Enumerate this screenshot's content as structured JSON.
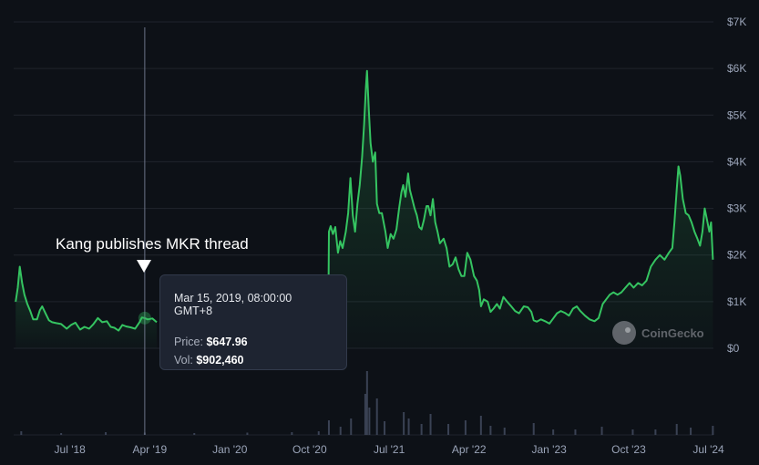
{
  "chart_data": {
    "type": "area",
    "series": [
      {
        "values": {
          "price": [
            [
              "2017-12-27",
              1000
            ],
            [
              "2018-01-03",
              1300
            ],
            [
              "2018-01-10",
              1750
            ],
            [
              "2018-01-18",
              1400
            ],
            [
              "2018-01-26",
              1150
            ],
            [
              "2018-02-05",
              950
            ],
            [
              "2018-02-15",
              800
            ],
            [
              "2018-02-25",
              620
            ],
            [
              "2018-03-10",
              620
            ],
            [
              "2018-03-20",
              820
            ],
            [
              "2018-03-28",
              900
            ],
            [
              "2018-04-08",
              750
            ],
            [
              "2018-04-20",
              600
            ],
            [
              "2018-05-01",
              560
            ],
            [
              "2018-05-15",
              540
            ],
            [
              "2018-06-01",
              520
            ],
            [
              "2018-06-20",
              420
            ],
            [
              "2018-07-05",
              500
            ],
            [
              "2018-07-20",
              550
            ],
            [
              "2018-08-05",
              400
            ],
            [
              "2018-08-20",
              460
            ],
            [
              "2018-09-05",
              420
            ],
            [
              "2018-09-20",
              520
            ],
            [
              "2018-10-05",
              650
            ],
            [
              "2018-10-20",
              560
            ],
            [
              "2018-11-05",
              580
            ],
            [
              "2018-11-18",
              460
            ],
            [
              "2018-12-01",
              440
            ],
            [
              "2018-12-15",
              380
            ],
            [
              "2018-12-28",
              500
            ],
            [
              "2019-01-10",
              470
            ],
            [
              "2019-01-25",
              450
            ],
            [
              "2019-02-10",
              420
            ],
            [
              "2019-02-25",
              560
            ],
            [
              "2019-03-05",
              660
            ],
            [
              "2019-03-15",
              648
            ],
            [
              "2019-03-25",
              620
            ],
            [
              "2019-04-10",
              640
            ],
            [
              "2019-04-25",
              560
            ]
          ],
          "price_after_gap": [
            [
              "2020-12-01",
              480
            ],
            [
              "2020-12-04",
              560
            ],
            [
              "2020-12-06",
              2500
            ],
            [
              "2020-12-12",
              2620
            ],
            [
              "2020-12-20",
              2450
            ],
            [
              "2020-12-28",
              2600
            ],
            [
              "2021-01-06",
              2050
            ],
            [
              "2021-01-14",
              2300
            ],
            [
              "2021-01-22",
              2150
            ],
            [
              "2021-02-02",
              2500
            ],
            [
              "2021-02-10",
              2900
            ],
            [
              "2021-02-18",
              3650
            ],
            [
              "2021-02-26",
              2850
            ],
            [
              "2021-03-06",
              2500
            ],
            [
              "2021-03-14",
              3100
            ],
            [
              "2021-03-22",
              3500
            ],
            [
              "2021-03-30",
              4100
            ],
            [
              "2021-04-06",
              4800
            ],
            [
              "2021-04-12",
              5600
            ],
            [
              "2021-04-16",
              5950
            ],
            [
              "2021-04-22",
              5100
            ],
            [
              "2021-04-28",
              4400
            ],
            [
              "2021-05-06",
              4000
            ],
            [
              "2021-05-14",
              4200
            ],
            [
              "2021-05-20",
              3100
            ],
            [
              "2021-05-28",
              2900
            ],
            [
              "2021-06-06",
              2900
            ],
            [
              "2021-06-18",
              2500
            ],
            [
              "2021-06-26",
              2150
            ],
            [
              "2021-07-06",
              2450
            ],
            [
              "2021-07-16",
              2350
            ],
            [
              "2021-07-26",
              2550
            ],
            [
              "2021-08-04",
              3000
            ],
            [
              "2021-08-12",
              3350
            ],
            [
              "2021-08-18",
              3500
            ],
            [
              "2021-08-26",
              3250
            ],
            [
              "2021-09-04",
              3750
            ],
            [
              "2021-09-10",
              3400
            ],
            [
              "2021-09-18",
              3200
            ],
            [
              "2021-09-26",
              3000
            ],
            [
              "2021-10-04",
              2850
            ],
            [
              "2021-10-12",
              2600
            ],
            [
              "2021-10-20",
              2550
            ],
            [
              "2021-10-28",
              2750
            ],
            [
              "2021-11-06",
              3050
            ],
            [
              "2021-11-12",
              3050
            ],
            [
              "2021-11-20",
              2850
            ],
            [
              "2021-11-28",
              3200
            ],
            [
              "2021-12-06",
              2700
            ],
            [
              "2021-12-14",
              2500
            ],
            [
              "2021-12-22",
              2250
            ],
            [
              "2022-01-04",
              2350
            ],
            [
              "2022-01-14",
              2150
            ],
            [
              "2022-01-24",
              1750
            ],
            [
              "2022-02-04",
              1800
            ],
            [
              "2022-02-14",
              1950
            ],
            [
              "2022-02-24",
              1700
            ],
            [
              "2022-03-06",
              1550
            ],
            [
              "2022-03-16",
              1550
            ],
            [
              "2022-03-26",
              2050
            ],
            [
              "2022-04-06",
              1900
            ],
            [
              "2022-04-18",
              1550
            ],
            [
              "2022-04-28",
              1450
            ],
            [
              "2022-05-06",
              1250
            ],
            [
              "2022-05-12",
              900
            ],
            [
              "2022-05-22",
              1050
            ],
            [
              "2022-06-04",
              1000
            ],
            [
              "2022-06-14",
              780
            ],
            [
              "2022-06-24",
              850
            ],
            [
              "2022-07-06",
              950
            ],
            [
              "2022-07-16",
              850
            ],
            [
              "2022-07-28",
              1100
            ],
            [
              "2022-08-10",
              1000
            ],
            [
              "2022-08-24",
              900
            ],
            [
              "2022-09-06",
              800
            ],
            [
              "2022-09-20",
              750
            ],
            [
              "2022-10-06",
              900
            ],
            [
              "2022-10-20",
              880
            ],
            [
              "2022-11-01",
              780
            ],
            [
              "2022-11-09",
              600
            ],
            [
              "2022-11-20",
              570
            ],
            [
              "2022-12-04",
              620
            ],
            [
              "2022-12-18",
              580
            ],
            [
              "2023-01-02",
              530
            ],
            [
              "2023-01-16",
              650
            ],
            [
              "2023-01-28",
              750
            ],
            [
              "2023-02-10",
              800
            ],
            [
              "2023-02-24",
              760
            ],
            [
              "2023-03-10",
              700
            ],
            [
              "2023-03-24",
              850
            ],
            [
              "2023-04-06",
              900
            ],
            [
              "2023-04-18",
              800
            ],
            [
              "2023-05-04",
              700
            ],
            [
              "2023-05-20",
              620
            ],
            [
              "2023-06-06",
              580
            ],
            [
              "2023-06-20",
              650
            ],
            [
              "2023-07-04",
              950
            ],
            [
              "2023-07-16",
              1050
            ],
            [
              "2023-07-28",
              1150
            ],
            [
              "2023-08-10",
              1200
            ],
            [
              "2023-08-24",
              1150
            ],
            [
              "2023-09-06",
              1200
            ],
            [
              "2023-09-20",
              1300
            ],
            [
              "2023-10-04",
              1400
            ],
            [
              "2023-10-18",
              1300
            ],
            [
              "2023-11-02",
              1400
            ],
            [
              "2023-11-16",
              1350
            ],
            [
              "2023-12-01",
              1450
            ],
            [
              "2023-12-16",
              1750
            ],
            [
              "2024-01-01",
              1900
            ],
            [
              "2024-01-16",
              2000
            ],
            [
              "2024-02-01",
              1900
            ],
            [
              "2024-02-16",
              2050
            ],
            [
              "2024-02-28",
              2150
            ],
            [
              "2024-03-06",
              2700
            ],
            [
              "2024-03-14",
              3400
            ],
            [
              "2024-03-20",
              3900
            ],
            [
              "2024-03-26",
              3700
            ],
            [
              "2024-04-04",
              3200
            ],
            [
              "2024-04-14",
              2900
            ],
            [
              "2024-04-24",
              2850
            ],
            [
              "2024-05-04",
              2700
            ],
            [
              "2024-05-14",
              2500
            ],
            [
              "2024-05-24",
              2350
            ],
            [
              "2024-06-02",
              2200
            ],
            [
              "2024-06-10",
              2500
            ],
            [
              "2024-06-18",
              3000
            ],
            [
              "2024-06-26",
              2750
            ],
            [
              "2024-07-04",
              2500
            ],
            [
              "2024-07-10",
              2700
            ],
            [
              "2024-07-16",
              1900
            ]
          ],
          "volume": [
            [
              "2018-01-15",
              0.4
            ],
            [
              "2018-06-01",
              0.2
            ],
            [
              "2018-11-01",
              0.3
            ],
            [
              "2019-03-15",
              0.25
            ],
            [
              "2019-09-01",
              0.2
            ],
            [
              "2020-03-01",
              0.25
            ],
            [
              "2020-08-01",
              0.3
            ],
            [
              "2020-11-01",
              0.4
            ],
            [
              "2020-12-06",
              1.6
            ],
            [
              "2021-01-15",
              0.9
            ],
            [
              "2021-02-20",
              1.8
            ],
            [
              "2021-04-10",
              4.5
            ],
            [
              "2021-04-16",
              7.0
            ],
            [
              "2021-04-24",
              3.0
            ],
            [
              "2021-05-20",
              4.0
            ],
            [
              "2021-06-15",
              1.5
            ],
            [
              "2021-08-20",
              2.5
            ],
            [
              "2021-09-06",
              1.8
            ],
            [
              "2021-10-20",
              1.2
            ],
            [
              "2021-11-20",
              2.3
            ],
            [
              "2022-01-20",
              1.2
            ],
            [
              "2022-03-20",
              1.6
            ],
            [
              "2022-05-12",
              2.1
            ],
            [
              "2022-06-14",
              1.0
            ],
            [
              "2022-08-01",
              0.8
            ],
            [
              "2022-11-09",
              1.3
            ],
            [
              "2023-01-15",
              0.6
            ],
            [
              "2023-04-01",
              0.6
            ],
            [
              "2023-07-01",
              0.9
            ],
            [
              "2023-10-15",
              0.6
            ],
            [
              "2024-01-01",
              0.6
            ],
            [
              "2024-03-14",
              1.2
            ],
            [
              "2024-05-01",
              0.8
            ],
            [
              "2024-07-16",
              1.0
            ]
          ]
        }
      }
    ],
    "x_ticks": [
      "Jul '18",
      "Apr '19",
      "Jan '20",
      "Oct '20",
      "Jul '21",
      "Apr '22",
      "Jan '23",
      "Oct '23",
      "Jul '24"
    ],
    "y_ticks": [
      "$0",
      "$1K",
      "$2K",
      "$3K",
      "$4K",
      "$5K",
      "$6K",
      "$7K"
    ],
    "ylim": [
      0,
      7000
    ],
    "y_axis_side": "right",
    "grid": "horizontal",
    "annotation": "Kang publishes MKR thread",
    "crosshair_date": "2019-03-15",
    "tooltip": {
      "date": "Mar 15, 2019, 08:00:00 GMT+8",
      "price_label": "Price:",
      "price_value": "$647.96",
      "vol_label": "Vol:",
      "vol_value": "$902,460"
    },
    "watermark": "CoinGecko",
    "colors": {
      "background": "#0d1117",
      "line": "#35c461",
      "grid": "#20242d",
      "axis_text": "#9aa4b8",
      "volume": "#3a4254"
    }
  }
}
